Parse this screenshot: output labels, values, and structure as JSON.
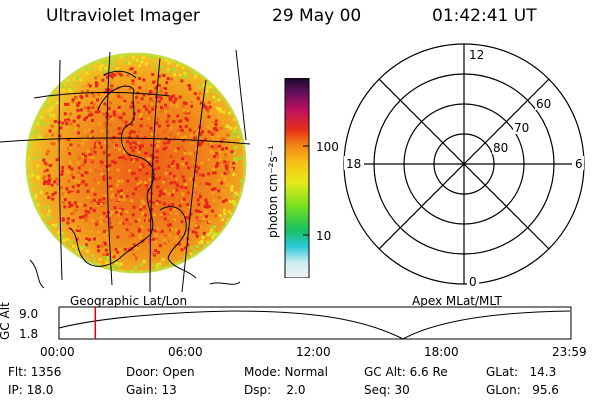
{
  "header": {
    "title": "Ultraviolet Imager",
    "date": "29 May 00",
    "time": "01:42:41 UT"
  },
  "colorbar": {
    "unit_label": "photon cm⁻²s⁻¹",
    "ticks": [
      "100",
      "10"
    ]
  },
  "polar": {
    "mlt_labels": [
      "12",
      "18",
      "6",
      "0"
    ],
    "lat_labels": [
      "60",
      "70",
      "80"
    ]
  },
  "captions": {
    "left": "Geographic Lat/Lon",
    "right": "Apex MLat/MLT"
  },
  "timeline": {
    "axis_label": "GC Alt",
    "y_ticks": [
      "9.0",
      "1.8"
    ],
    "x_ticks": [
      "00:00",
      "06:00",
      "12:00",
      "18:00",
      "23:59"
    ],
    "marker_time": "01:42"
  },
  "info": {
    "flt": "Flt: 1356",
    "ip": "IP: 18.0",
    "door": "Door: Open",
    "gain": "Gain: 13",
    "mode": "Mode: Normal",
    "dsp": "Dsp:    2.0",
    "gcalt": "GC Alt: 6.6 Re",
    "seq": "Seq: 30",
    "glat": "GLat:   14.3",
    "glon": "GLon:   95.6"
  },
  "colors": {
    "disk_outer": "#f0e020",
    "disk_mid": "#f5a21c",
    "disk_inner": "#ee6418",
    "speckle": "#e8231c",
    "marker": "#e00000"
  }
}
